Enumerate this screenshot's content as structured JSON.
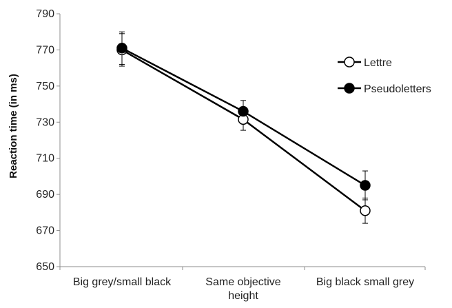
{
  "chart_data": {
    "type": "line",
    "title": "",
    "xlabel": "",
    "ylabel": "Reaction time (in ms)",
    "categories": [
      [
        "Big grey/small black"
      ],
      [
        "Same objective",
        "height"
      ],
      [
        "Big black small grey"
      ]
    ],
    "ylim": [
      650,
      790
    ],
    "yticks": [
      650,
      670,
      690,
      710,
      730,
      750,
      770,
      790
    ],
    "grid": false,
    "legend_position": "right",
    "series": [
      {
        "name": "Lettre",
        "values": [
          770,
          731.5,
          681
        ],
        "errors": [
          9,
          6,
          7
        ],
        "marker": "open-circle",
        "color": "#000000"
      },
      {
        "name": "Pseudoletters",
        "values": [
          771,
          736,
          695
        ],
        "errors": [
          9,
          6,
          8
        ],
        "marker": "filled-circle",
        "color": "#000000"
      }
    ]
  }
}
